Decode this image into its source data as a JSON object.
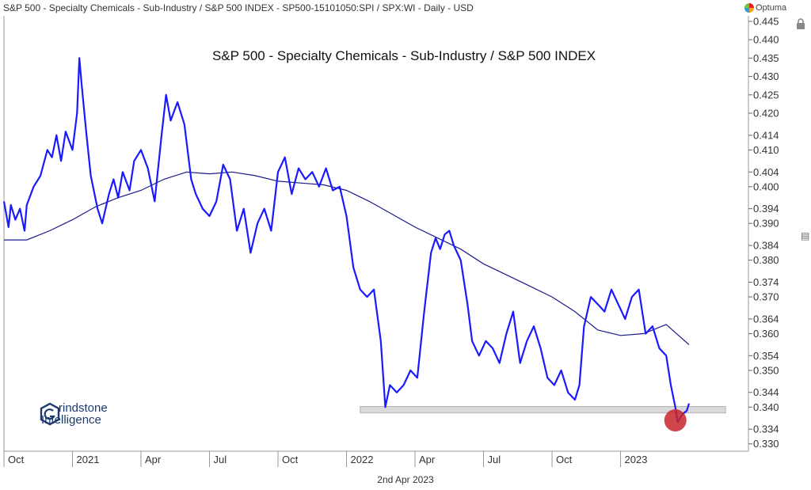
{
  "header": {
    "text": "S&P 500 - Specialty Chemicals - Sub-Industry / S&P 500 INDEX - SP500-15101050:SPI / SPX:WI - Daily - USD"
  },
  "brand": {
    "name": "Optuma",
    "icon": "optuma-logo-icon"
  },
  "lock_icon": "lock-icon",
  "date_label": "2nd Apr 2023",
  "logo": {
    "line1": "rindstone",
    "line2": "Intelligence",
    "icon": "hexagon-g-icon",
    "color": "#1d3a6e"
  },
  "side_icon": "expand-icon",
  "chart_data": {
    "type": "line",
    "title": "S&P 500 - Specialty Chemicals - Sub-Industry / S&P 500 INDEX",
    "xlabel": "",
    "ylabel": "",
    "x_ticks": [
      "Oct",
      "2021",
      "Apr",
      "Jul",
      "Oct",
      "2022",
      "Apr",
      "Jul",
      "Oct",
      "2023"
    ],
    "x_tick_times": [
      0,
      3,
      6,
      9,
      12,
      15,
      18,
      21,
      24,
      27
    ],
    "xlim": [
      0,
      32.6
    ],
    "y_ticks": [
      "0.330",
      "0.334",
      "0.340",
      "0.344",
      "0.350",
      "0.354",
      "0.360",
      "0.364",
      "0.370",
      "0.374",
      "0.380",
      "0.384",
      "0.390",
      "0.394",
      "0.400",
      "0.404",
      "0.410",
      "0.414",
      "0.420",
      "0.425",
      "0.430",
      "0.435",
      "0.440",
      "0.445"
    ],
    "ylim": [
      0.328,
      0.4465
    ],
    "grid": false,
    "legend": "none",
    "line_color": "#1a1aff",
    "ma_color": "#1a1a8a",
    "support_color": "#d9d9d9",
    "highlight_color": "#c8242c",
    "series": [
      {
        "role": "ratio",
        "x": [
          0,
          0.2,
          0.3,
          0.5,
          0.7,
          0.9,
          1.0,
          1.3,
          1.6,
          1.9,
          2.1,
          2.3,
          2.5,
          2.7,
          3.0,
          3.2,
          3.3,
          3.4,
          3.6,
          3.8,
          4.1,
          4.3,
          4.6,
          4.8,
          5.0,
          5.2,
          5.5,
          5.7,
          6.0,
          6.3,
          6.6,
          6.9,
          7.1,
          7.3,
          7.6,
          7.9,
          8.2,
          8.4,
          8.7,
          9.0,
          9.3,
          9.6,
          9.9,
          10.2,
          10.5,
          10.8,
          11.1,
          11.4,
          11.7,
          12.0,
          12.3,
          12.6,
          12.9,
          13.2,
          13.5,
          13.8,
          14.1,
          14.4,
          14.7,
          15.0,
          15.3,
          15.6,
          15.9,
          16.2,
          16.5,
          16.7,
          16.9,
          17.2,
          17.5,
          17.8,
          18.1,
          18.4,
          18.7,
          18.9,
          19.1,
          19.3,
          19.5,
          19.7,
          20.0,
          20.3,
          20.5,
          20.8,
          21.1,
          21.4,
          21.7,
          22.0,
          22.3,
          22.6,
          22.9,
          23.2,
          23.5,
          23.8,
          24.1,
          24.4,
          24.7,
          25.0,
          25.2,
          25.4,
          25.7,
          26.0,
          26.3,
          26.6,
          26.9,
          27.2,
          27.5,
          27.8,
          28.1,
          28.4,
          28.7,
          29.0,
          29.2,
          29.4,
          29.5,
          29.7,
          29.9,
          30.0
        ],
        "values": [
          0.396,
          0.389,
          0.395,
          0.391,
          0.394,
          0.388,
          0.395,
          0.4,
          0.403,
          0.41,
          0.408,
          0.414,
          0.407,
          0.415,
          0.41,
          0.42,
          0.435,
          0.428,
          0.415,
          0.403,
          0.394,
          0.39,
          0.398,
          0.402,
          0.397,
          0.404,
          0.399,
          0.407,
          0.41,
          0.405,
          0.396,
          0.414,
          0.425,
          0.418,
          0.423,
          0.417,
          0.402,
          0.398,
          0.394,
          0.392,
          0.396,
          0.406,
          0.402,
          0.388,
          0.394,
          0.382,
          0.39,
          0.394,
          0.388,
          0.404,
          0.408,
          0.398,
          0.405,
          0.402,
          0.404,
          0.4,
          0.405,
          0.399,
          0.4,
          0.392,
          0.378,
          0.372,
          0.37,
          0.372,
          0.358,
          0.34,
          0.346,
          0.344,
          0.346,
          0.35,
          0.348,
          0.366,
          0.382,
          0.386,
          0.383,
          0.387,
          0.388,
          0.384,
          0.38,
          0.368,
          0.358,
          0.354,
          0.358,
          0.356,
          0.352,
          0.36,
          0.366,
          0.352,
          0.358,
          0.362,
          0.356,
          0.348,
          0.346,
          0.35,
          0.344,
          0.342,
          0.346,
          0.362,
          0.37,
          0.368,
          0.366,
          0.372,
          0.368,
          0.364,
          0.37,
          0.372,
          0.36,
          0.362,
          0.356,
          0.354,
          0.346,
          0.34,
          0.336,
          0.338,
          0.339,
          0.341
        ]
      },
      {
        "role": "moving_average",
        "x": [
          0,
          1,
          2,
          3,
          4,
          5,
          6,
          7,
          8,
          9,
          10,
          11,
          12,
          13,
          14,
          15,
          16,
          17,
          18,
          19,
          20,
          21,
          22,
          23,
          24,
          25,
          26,
          27,
          28,
          29,
          30
        ],
        "values": [
          0.3855,
          0.3855,
          0.388,
          0.391,
          0.3945,
          0.397,
          0.399,
          0.402,
          0.404,
          0.4035,
          0.404,
          0.403,
          0.4015,
          0.401,
          0.4005,
          0.399,
          0.396,
          0.3925,
          0.389,
          0.386,
          0.383,
          0.379,
          0.376,
          0.373,
          0.37,
          0.366,
          0.361,
          0.3595,
          0.36,
          0.3625,
          0.357
        ]
      }
    ],
    "support": {
      "y_low": 0.3384,
      "y_high": 0.3402,
      "x_start": 15.6,
      "x_end": 31.6
    },
    "highlight": {
      "x": 29.4,
      "y": 0.3364
    }
  }
}
